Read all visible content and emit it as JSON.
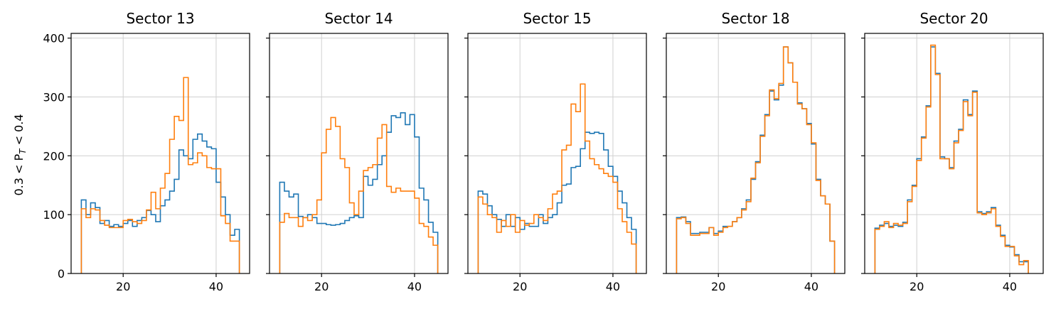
{
  "chart_data": {
    "type": "step-histogram",
    "ylabel": "0.3 < P_T < 0.4",
    "ylabel_main": "0.3 < P",
    "ylabel_sub": "T",
    "ylabel_tail": " < 0.4",
    "xlim": [
      8.8,
      47.2
    ],
    "ylim": [
      0,
      408
    ],
    "xticks": [
      20,
      40
    ],
    "yticks": [
      0,
      100,
      200,
      300,
      400
    ],
    "grid": true,
    "bin_start": 11,
    "bin_width": 1,
    "colors": {
      "blue": "#1f77b4",
      "orange": "#ff7f0e"
    },
    "panels": [
      {
        "title": "Sector 13",
        "series": [
          {
            "color": "#1f77b4",
            "values": [
              125,
              100,
              120,
              112,
              85,
              90,
              80,
              83,
              80,
              85,
              90,
              80,
              90,
              95,
              107,
              100,
              88,
              115,
              125,
              140,
              160,
              210,
              200,
              195,
              228,
              237,
              225,
              215,
              212,
              155,
              130,
              100,
              65,
              75
            ]
          },
          {
            "color": "#ff7f0e",
            "values": [
              110,
              95,
              110,
              108,
              90,
              82,
              78,
              78,
              78,
              90,
              92,
              88,
              85,
              90,
              108,
              138,
              110,
              145,
              170,
              228,
              267,
              260,
              333,
              185,
              188,
              205,
              200,
              180,
              178,
              178,
              98,
              85,
              55,
              55
            ]
          }
        ]
      },
      {
        "title": "Sector 14",
        "series": [
          {
            "color": "#1f77b4",
            "values": [
              155,
              140,
              130,
              135,
              97,
              95,
              100,
              95,
              85,
              85,
              83,
              82,
              83,
              85,
              90,
              95,
              98,
              95,
              165,
              150,
              160,
              185,
              200,
              240,
              268,
              265,
              273,
              253,
              270,
              232,
              145,
              125,
              87,
              70
            ]
          },
          {
            "color": "#ff7f0e",
            "values": [
              87,
              102,
              95,
              95,
              80,
              95,
              90,
              100,
              125,
              205,
              245,
              265,
              250,
              195,
              180,
              120,
              100,
              140,
              175,
              180,
              185,
              230,
              253,
              148,
              138,
              145,
              140,
              140,
              140,
              128,
              85,
              80,
              62,
              48
            ]
          }
        ]
      },
      {
        "title": "Sector 15",
        "series": [
          {
            "color": "#1f77b4",
            "values": [
              140,
              135,
              115,
              100,
              92,
              80,
              100,
              80,
              95,
              75,
              85,
              80,
              80,
              100,
              85,
              95,
              100,
              120,
              150,
              152,
              180,
              182,
              212,
              240,
              238,
              240,
              238,
              210,
              182,
              165,
              140,
              120,
              95,
              75
            ]
          },
          {
            "color": "#ff7f0e",
            "values": [
              130,
              118,
              100,
              95,
              70,
              90,
              80,
              100,
              70,
              90,
              82,
              85,
              100,
              95,
              90,
              110,
              135,
              140,
              210,
              218,
              288,
              275,
              322,
              225,
              195,
              185,
              178,
              170,
              165,
              155,
              110,
              88,
              70,
              50
            ]
          }
        ]
      },
      {
        "title": "Sector 18",
        "series": [
          {
            "color": "#1f77b4",
            "values": [
              95,
              96,
              88,
              68,
              68,
              70,
              70,
              78,
              68,
              72,
              80,
              80,
              88,
              95,
              110,
              125,
              160,
              190,
              235,
              270,
              310,
              295,
              320,
              385,
              358,
              325,
              290,
              280,
              255,
              220,
              160,
              132,
              118,
              55
            ]
          },
          {
            "color": "#ff7f0e",
            "values": [
              93,
              95,
              85,
              65,
              65,
              68,
              68,
              78,
              65,
              70,
              78,
              80,
              88,
              95,
              108,
              122,
              162,
              188,
              233,
              268,
              312,
              297,
              323,
              385,
              358,
              325,
              288,
              280,
              253,
              222,
              158,
              132,
              118,
              55
            ]
          }
        ]
      },
      {
        "title": "Sector 20",
        "series": [
          {
            "color": "#1f77b4",
            "values": [
              77,
              82,
              85,
              80,
              82,
              80,
              87,
              125,
              150,
              195,
              232,
              285,
              385,
              340,
              198,
              195,
              180,
              225,
              245,
              295,
              270,
              310,
              105,
              102,
              105,
              112,
              82,
              65,
              48,
              45,
              32,
              20,
              20
            ]
          },
          {
            "color": "#ff7f0e",
            "values": [
              75,
              80,
              88,
              78,
              85,
              82,
              85,
              122,
              148,
              192,
              230,
              283,
              388,
              338,
              195,
              195,
              178,
              222,
              243,
              292,
              268,
              308,
              103,
              100,
              103,
              110,
              80,
              63,
              46,
              46,
              30,
              15,
              22
            ]
          }
        ]
      }
    ]
  }
}
